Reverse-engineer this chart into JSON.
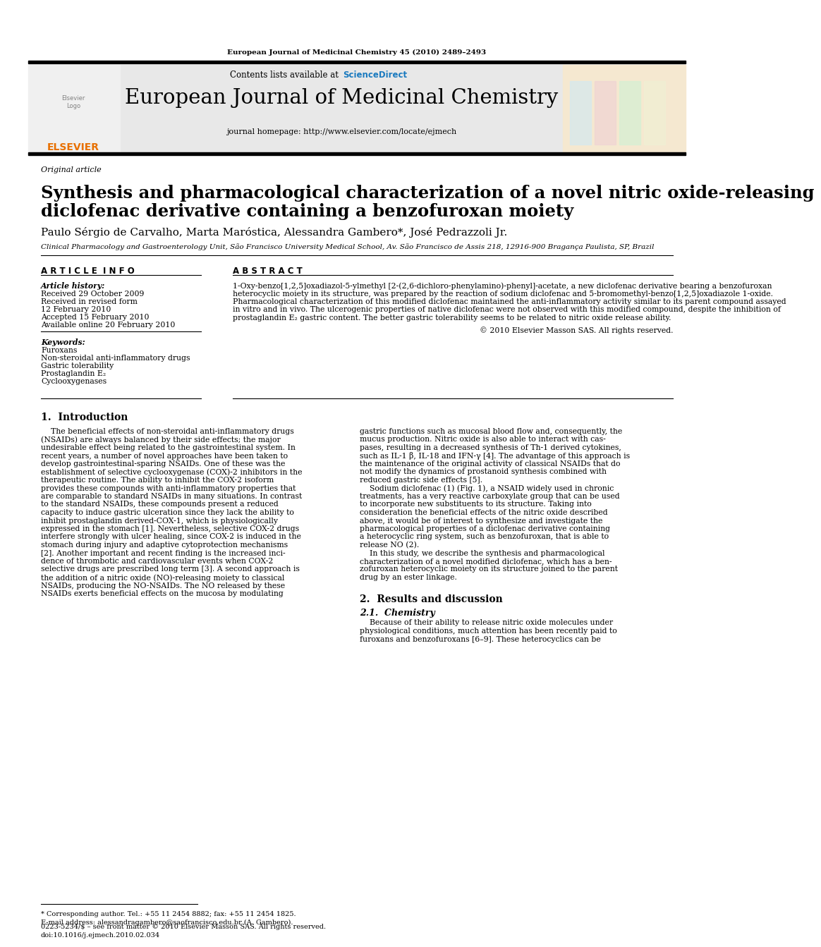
{
  "page_width": 9.92,
  "page_height": 13.23,
  "bg_color": "#ffffff",
  "top_citation": "European Journal of Medicinal Chemistry 45 (2010) 2489–2493",
  "journal_name": "European Journal of Medicinal Chemistry",
  "contents_text": "Contents lists available at ",
  "sciencedirect_text": "ScienceDirect",
  "sciencedirect_color": "#1a7abf",
  "journal_homepage": "journal homepage: http://www.elsevier.com/locate/ejmech",
  "article_type": "Original article",
  "title_line1": "Synthesis and pharmacological characterization of a novel nitric oxide-releasing",
  "title_line2": "diclofenac derivative containing a benzofuroxan moiety",
  "authors": "Paulo Sérgio de Carvalho, Marta Maróstica, Alessandra Gambero*, José Pedrazzoli Jr.",
  "affiliation": "Clinical Pharmacology and Gastroenterology Unit, São Francisco University Medical School, Av. São Francisco de Assis 218, 12916-900 Bragança Paulista, SP, Brazil",
  "article_info_header": "A R T I C L E  I N F O",
  "abstract_header": "A B S T R A C T",
  "article_history_label": "Article history:",
  "received1": "Received 29 October 2009",
  "received2": "Received in revised form",
  "received2b": "12 February 2010",
  "accepted": "Accepted 15 February 2010",
  "available": "Available online 20 February 2010",
  "keywords_label": "Keywords:",
  "keyword1": "Furoxans",
  "keyword2": "Non-steroidal anti-inflammatory drugs",
  "keyword3": "Gastric tolerability",
  "keyword4": "Prostaglandin E₂",
  "keyword5": "Cyclooxygenases",
  "copyright": "© 2010 Elsevier Masson SAS. All rights reserved.",
  "intro_header": "1.  Introduction",
  "results_header": "2.  Results and discussion",
  "chemistry_header": "2.1.  Chemistry",
  "footer_note": "* Corresponding author. Tel.: +55 11 2454 8882; fax: +55 11 2454 1825.",
  "footer_email": "E-mail address: alessandragambero@saofrancisco.edu.br (A. Gambero).",
  "footer_issn": "0223-5234/$ – see front matter © 2010 Elsevier Masson SAS. All rights reserved.",
  "footer_doi": "doi:10.1016/j.ejmech.2010.02.034",
  "header_bg": "#e8e8e8",
  "elsevier_orange": "#e87000",
  "abstract_lines": [
    "1-Oxy-benzo[1,2,5]oxadiazol-5-ylmethyl [2-(2,6-dichloro-phenylamino)-phenyl]-acetate, a new diclofenac derivative bearing a benzofuroxan",
    "heterocyclic moiety in its structure, was prepared by the reaction of sodium diclofenac and 5-bromomethyl-benzo[1,2,5]oxadiazole 1-oxide.",
    "Pharmacological characterization of this modified diclofenac maintained the anti-inflammatory activity similar to its parent compound assayed",
    "in vitro and in vivo. The ulcerogenic properties of native diclofenac were not observed with this modified compound, despite the inhibition of",
    "prostaglandin E₂ gastric content. The better gastric tolerability seems to be related to nitric oxide release ability."
  ],
  "intro1_lines": [
    "    The beneficial effects of non-steroidal anti-inflammatory drugs",
    "(NSAIDs) are always balanced by their side effects; the major",
    "undesirable effect being related to the gastrointestinal system. In",
    "recent years, a number of novel approaches have been taken to",
    "develop gastrointestinal-sparing NSAIDs. One of these was the",
    "establishment of selective cyclooxygenase (COX)-2 inhibitors in the",
    "therapeutic routine. The ability to inhibit the COX-2 isoform",
    "provides these compounds with anti-inflammatory properties that",
    "are comparable to standard NSAIDs in many situations. In contrast",
    "to the standard NSAIDs, these compounds present a reduced",
    "capacity to induce gastric ulceration since they lack the ability to",
    "inhibit prostaglandin derived-COX-1, which is physiologically",
    "expressed in the stomach [1]. Nevertheless, selective COX-2 drugs",
    "interfere strongly with ulcer healing, since COX-2 is induced in the",
    "stomach during injury and adaptive cytoprotection mechanisms",
    "[2]. Another important and recent finding is the increased inci-",
    "dence of thrombotic and cardiovascular events when COX-2",
    "selective drugs are prescribed long term [3]. A second approach is",
    "the addition of a nitric oxide (NO)-releasing moiety to classical",
    "NSAIDs, producing the NO-NSAIDs. The NO released by these",
    "NSAIDs exerts beneficial effects on the mucosa by modulating"
  ],
  "intro2_lines": [
    "gastric functions such as mucosal blood flow and, consequently, the",
    "mucus production. Nitric oxide is also able to interact with cas-",
    "pases, resulting in a decreased synthesis of Th-1 derived cytokines,",
    "such as IL-1 β, IL-18 and IFN-γ [4]. The advantage of this approach is",
    "the maintenance of the original activity of classical NSAIDs that do",
    "not modify the dynamics of prostanoid synthesis combined with",
    "reduced gastric side effects [5].",
    "    Sodium diclofenac (1) (Fig. 1), a NSAID widely used in chronic",
    "treatments, has a very reactive carboxylate group that can be used",
    "to incorporate new substituents to its structure. Taking into",
    "consideration the beneficial effects of the nitric oxide described",
    "above, it would be of interest to synthesize and investigate the",
    "pharmacological properties of a diclofenac derivative containing",
    "a heterocyclic ring system, such as benzofuroxan, that is able to",
    "release NO (2).",
    "    In this study, we describe the synthesis and pharmacological",
    "characterization of a novel modified diclofenac, which has a ben-",
    "zofuroxan heterocyclic moiety on its structure joined to the parent",
    "drug by an ester linkage."
  ],
  "chem_lines": [
    "    Because of their ability to release nitric oxide molecules under",
    "physiological conditions, much attention has been recently paid to",
    "furoxans and benzofuroxans [6–9]. These heterocyclics can be"
  ]
}
